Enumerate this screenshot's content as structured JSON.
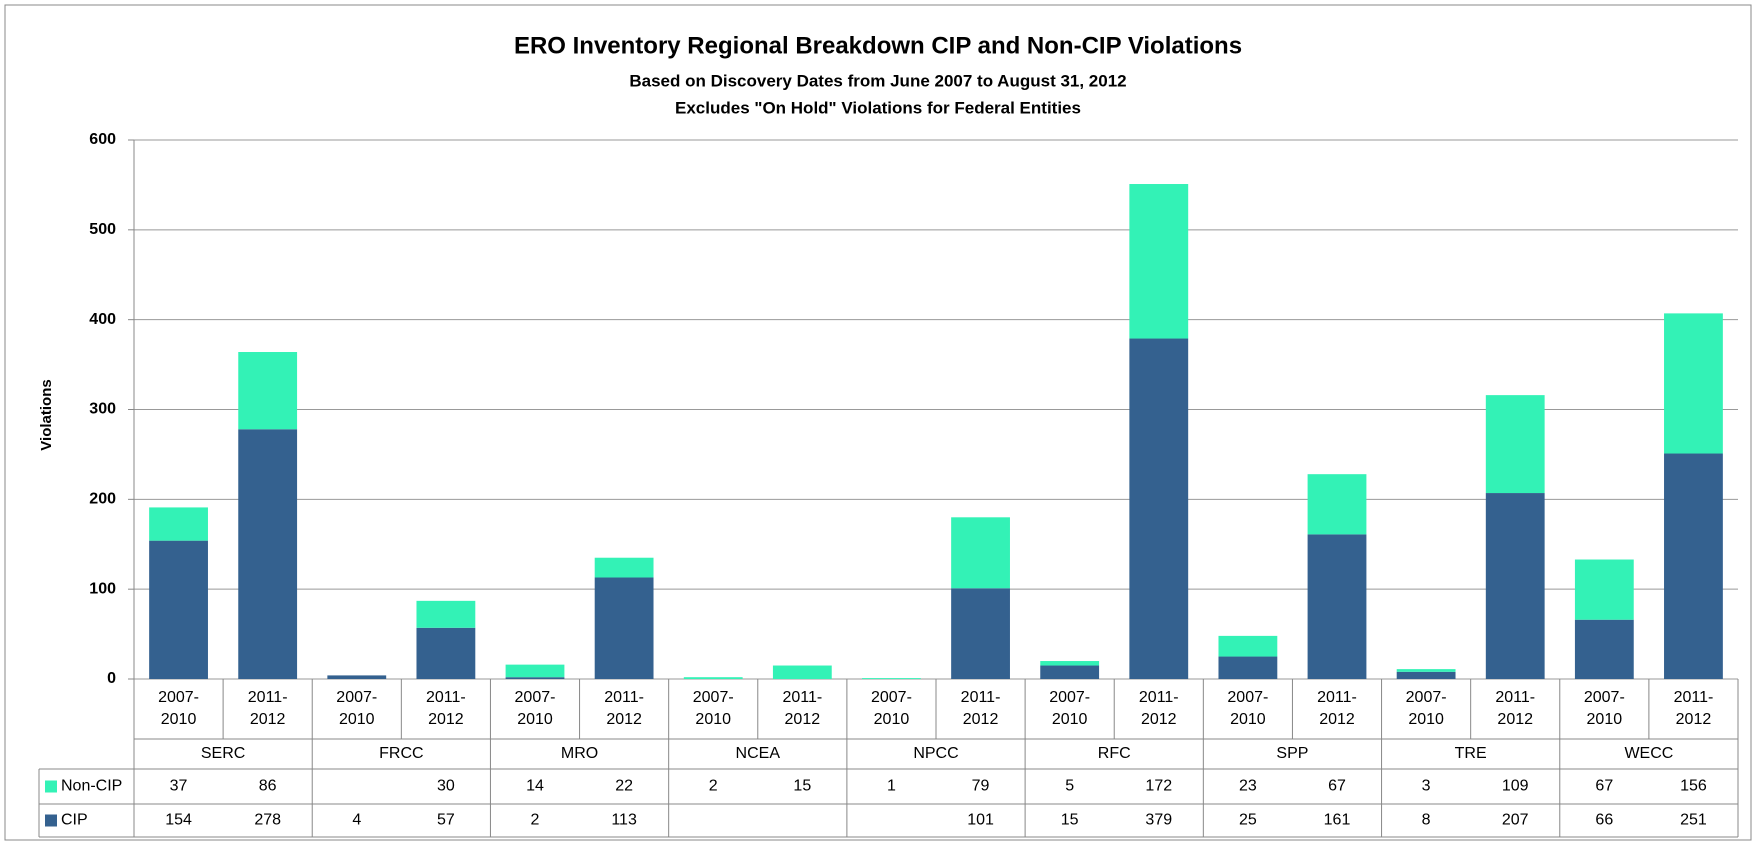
{
  "chart_data": {
    "type": "bar",
    "stacked": true,
    "title": "ERO Inventory Regional Breakdown CIP and Non-CIP Violations",
    "subtitle": "Based on Discovery Dates from June 2007  to August 31, 2012",
    "subtitle2": "Excludes \"On Hold\"  Violations for Federal Entities",
    "y_label": "Violations",
    "categories": [
      "2007-2010",
      "2011-2012",
      "2007-2010",
      "2011-2012",
      "2007-2010",
      "2011-2012",
      "2007-2010",
      "2011-2012",
      "2007-2010",
      "2011-2012",
      "2007-2010",
      "2011-2012",
      "2007-2010",
      "2011-2012",
      "2007-2010",
      "2011-2012",
      "2007-2010",
      "2011-2012"
    ],
    "groups": [
      "SERC",
      "FRCC",
      "MRO",
      "NCEA",
      "NPCC",
      "RFC",
      "SPP",
      "TRE",
      "WECC"
    ],
    "series": [
      {
        "name": "CIP",
        "color": "#34618f",
        "values": [
          154,
          278,
          4,
          57,
          2,
          113,
          null,
          null,
          null,
          101,
          15,
          379,
          25,
          161,
          8,
          207,
          66,
          251
        ]
      },
      {
        "name": "Non-CIP",
        "color": "#33f2b6",
        "values": [
          37,
          86,
          null,
          30,
          14,
          22,
          2,
          15,
          1,
          79,
          5,
          172,
          23,
          67,
          3,
          109,
          67,
          156
        ]
      }
    ],
    "ylim": [
      0,
      600
    ],
    "yticks": [
      0,
      100,
      200,
      300,
      400,
      500,
      600
    ],
    "grid": true,
    "legend": "data-table"
  }
}
